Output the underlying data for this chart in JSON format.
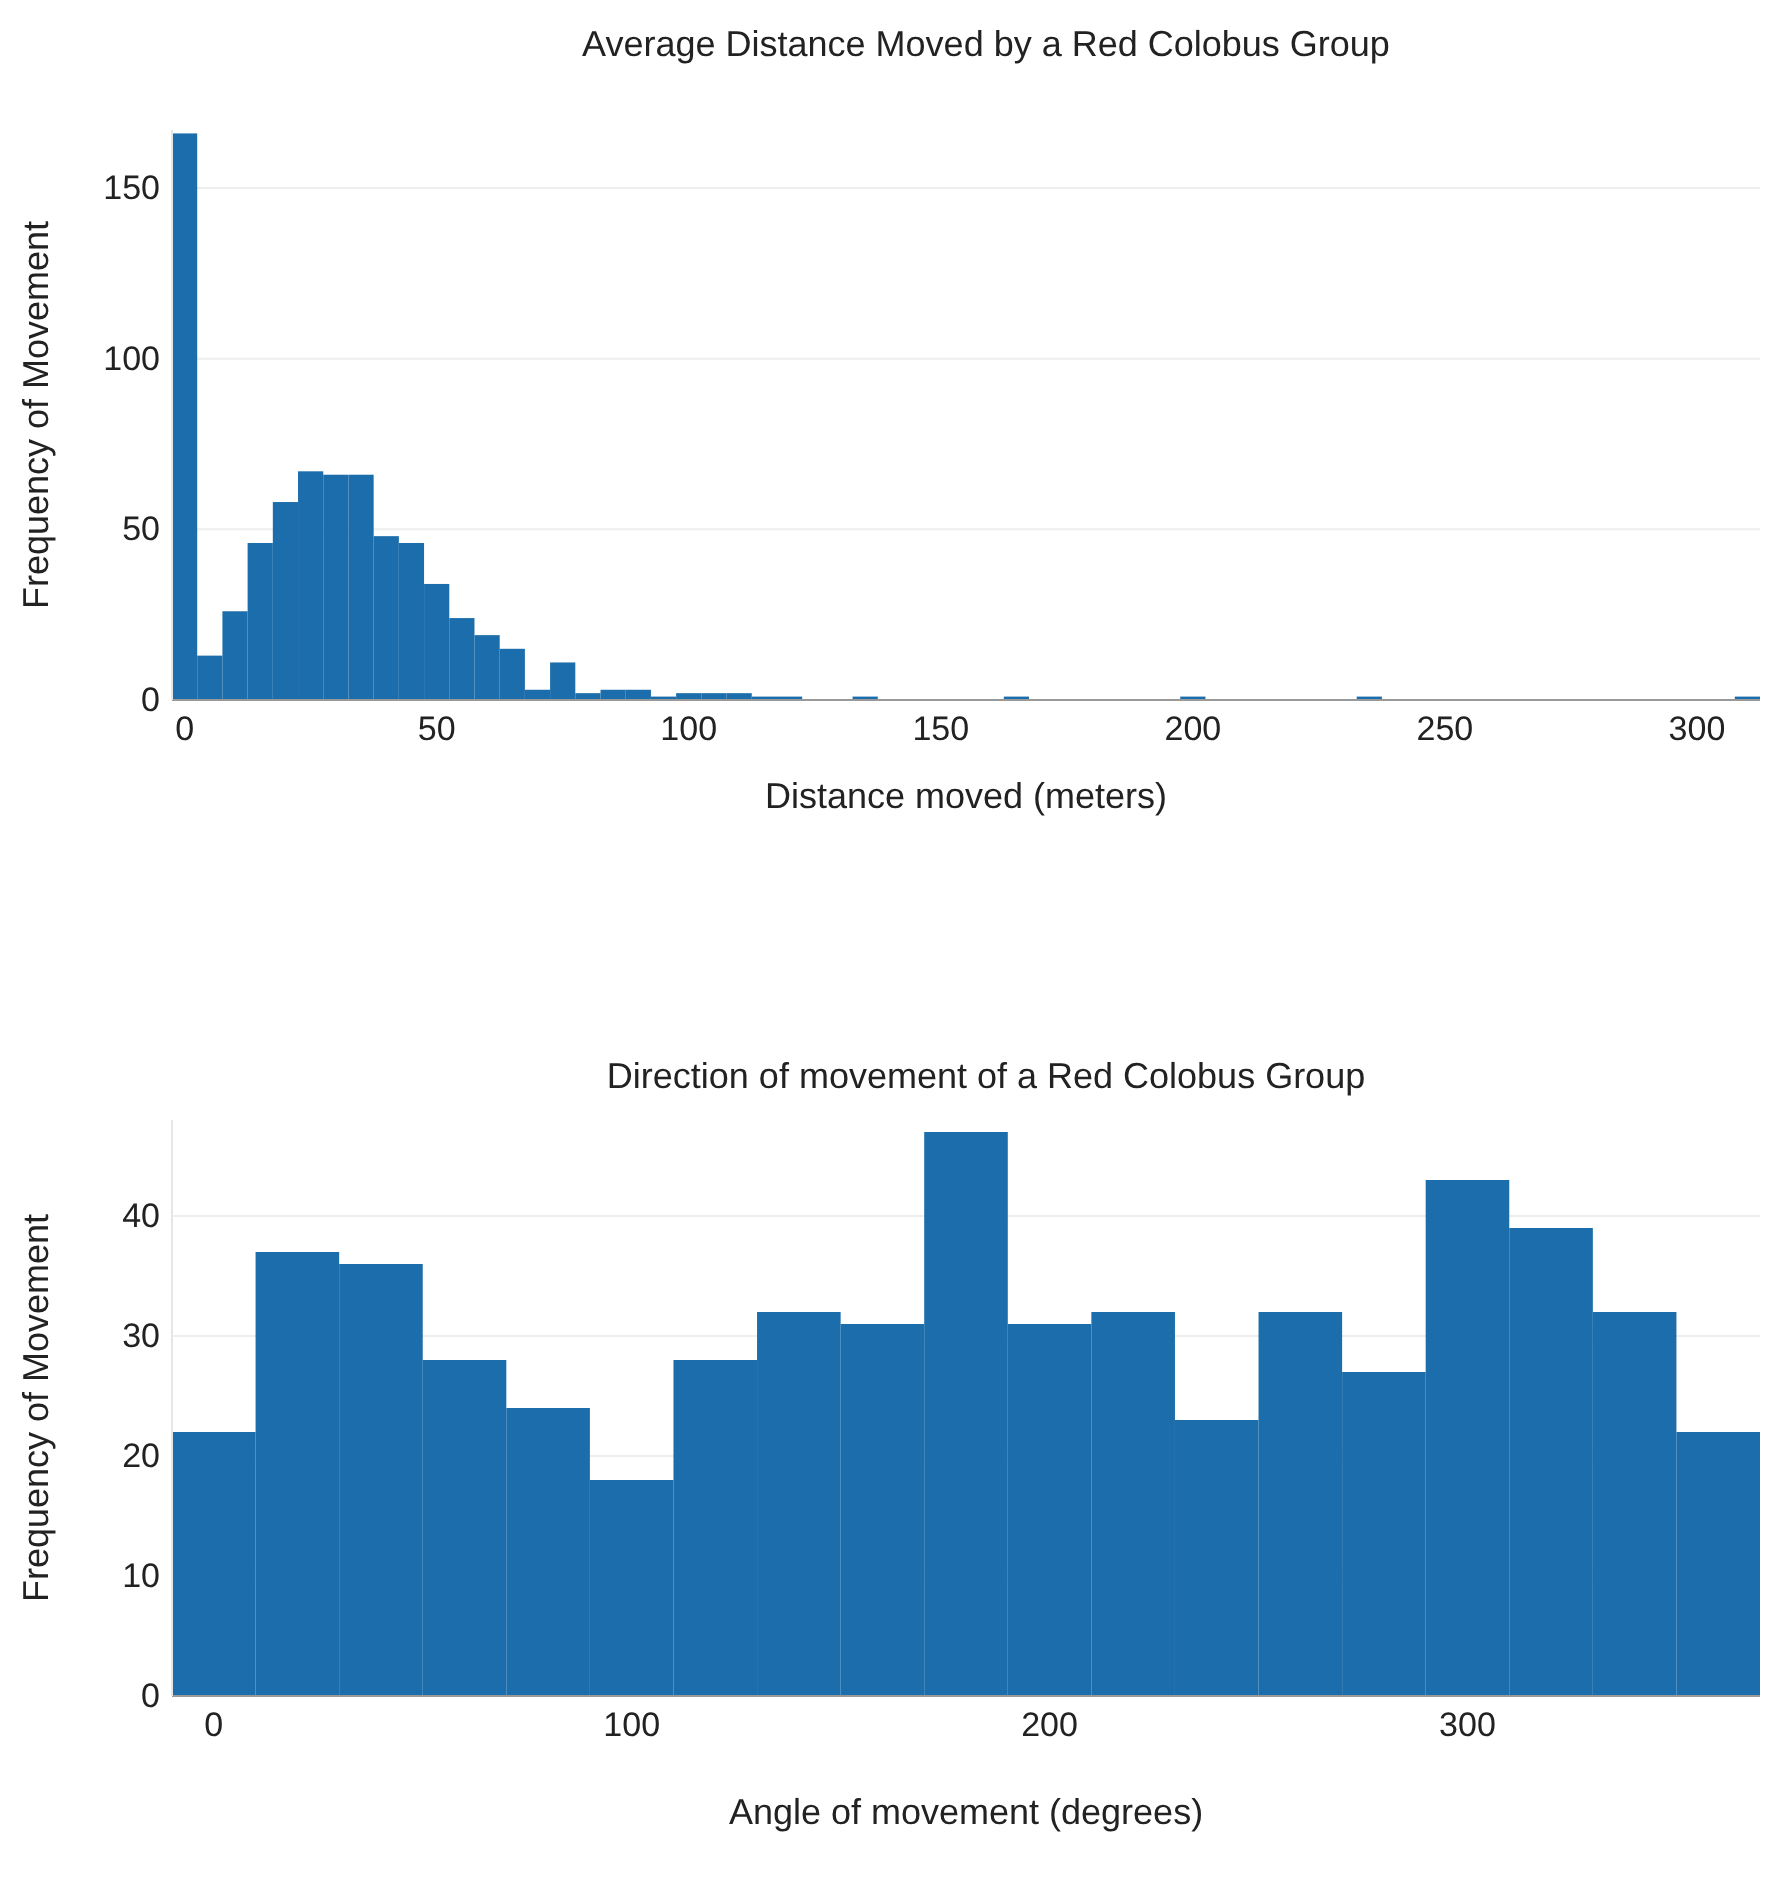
{
  "chart_data": [
    {
      "type": "histogram",
      "title": "Average Distance Moved by a Red Colobus Group",
      "xlabel": "Distance moved (meters)",
      "ylabel": "Frequency of Movement",
      "color": "#1c6dab",
      "bins": [
        -2.5,
        2.5,
        7.5,
        12.5,
        17.5,
        22.5,
        27.5,
        32.5,
        37.5,
        42.5,
        47.5,
        52.5,
        57.5,
        62.5,
        67.5,
        72.5,
        77.5,
        82.5,
        87.5,
        92.5,
        97.5,
        102.5,
        107.5,
        112.5,
        117.5,
        122.5,
        127.5,
        132.5,
        137.5,
        142.5,
        147.5,
        152.5,
        157.5,
        162.5,
        167.5,
        172.5,
        177.5,
        182.5,
        187.5,
        192.5,
        197.5,
        202.5,
        207.5,
        212.5,
        217.5,
        222.5,
        227.5,
        232.5,
        237.5,
        242.5,
        247.5,
        252.5,
        257.5,
        262.5,
        267.5,
        272.5,
        277.5,
        282.5,
        287.5,
        292.5,
        297.5,
        302.5,
        307.5,
        312.5
      ],
      "values": [
        166,
        13,
        26,
        46,
        58,
        67,
        66,
        66,
        48,
        46,
        34,
        24,
        19,
        15,
        3,
        11,
        2,
        3,
        3,
        1,
        2,
        2,
        2,
        1,
        1,
        0,
        0,
        1,
        0,
        0,
        0,
        0,
        0,
        1,
        0,
        0,
        0,
        0,
        0,
        0,
        1,
        0,
        0,
        0,
        0,
        0,
        0,
        1,
        0,
        0,
        0,
        0,
        0,
        0,
        0,
        0,
        0,
        0,
        0,
        0,
        0,
        0,
        1
      ],
      "xlim": [
        -2.5,
        312.5
      ],
      "xticks": [
        0,
        50,
        100,
        150,
        200,
        250,
        300
      ],
      "ylim": [
        0,
        167
      ],
      "yticks": [
        0,
        50,
        100,
        150
      ],
      "grid": "y"
    },
    {
      "type": "histogram",
      "title": "Direction of movement of a Red Colobus Group",
      "xlabel": "Angle of movement (degrees)",
      "ylabel": "Frequency of Movement",
      "color": "#1c6dab",
      "bins": [
        -10,
        10,
        30,
        50,
        70,
        90,
        110,
        130,
        150,
        170,
        190,
        210,
        230,
        250,
        270,
        290,
        310,
        330,
        350,
        370
      ],
      "values": [
        22,
        37,
        36,
        28,
        24,
        18,
        28,
        32,
        31,
        47,
        31,
        32,
        23,
        32,
        27,
        43,
        39,
        32,
        22
      ],
      "xlim": [
        -10,
        370
      ],
      "xticks": [
        0,
        100,
        200,
        300
      ],
      "ylim": [
        0,
        48
      ],
      "yticks": [
        0,
        10,
        20,
        30,
        40
      ],
      "grid": "y"
    }
  ]
}
